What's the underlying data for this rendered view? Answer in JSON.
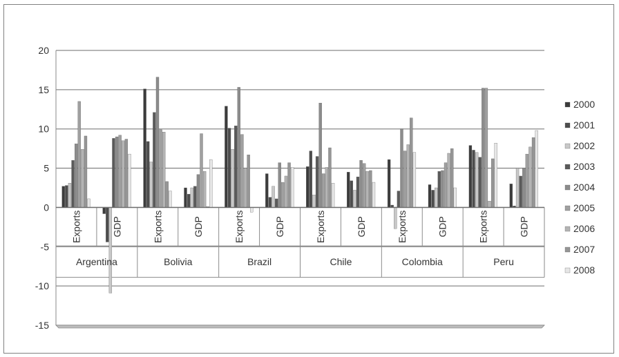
{
  "chart_data": {
    "type": "bar",
    "title": "",
    "xlabel": "",
    "ylabel": "",
    "ylim": [
      -15,
      20
    ],
    "yticks": [
      -15,
      -10,
      -5,
      0,
      5,
      10,
      15,
      20
    ],
    "grid": "horizontal",
    "legend_position": "right",
    "groups": [
      "Argentina",
      "Bolivia",
      "Brazil",
      "Chile",
      "Colombia",
      "Peru"
    ],
    "subcategories": [
      "Exports",
      "GDP"
    ],
    "series_names": [
      "2000",
      "2001",
      "2002",
      "2003",
      "2004",
      "2005",
      "2006",
      "2007",
      "2008"
    ],
    "series_colors": [
      "#3c3c3c",
      "#4d4d4d",
      "#c8c8c8",
      "#5a5a5a",
      "#8c8c8c",
      "#a0a0a0",
      "#b4b4b4",
      "#969696",
      "#e6e6e6"
    ],
    "data": {
      "Argentina": {
        "Exports": [
          2.7,
          2.8,
          3.1,
          6.0,
          8.1,
          13.5,
          7.4,
          9.1,
          1.1
        ],
        "GDP": [
          -0.8,
          -4.4,
          -10.9,
          8.8,
          9.0,
          9.2,
          8.5,
          8.7,
          6.8
        ]
      },
      "Bolivia": {
        "Exports": [
          15.1,
          8.4,
          5.8,
          12.1,
          16.6,
          9.9,
          9.6,
          3.3,
          2.1
        ],
        "GDP": [
          2.5,
          1.7,
          2.5,
          2.7,
          4.2,
          9.4,
          4.6,
          0.1,
          6.1
        ]
      },
      "Brazil": {
        "Exports": [
          12.9,
          10.1,
          7.4,
          10.4,
          15.3,
          9.3,
          5.0,
          6.7,
          -0.6
        ],
        "GDP": [
          4.3,
          1.3,
          2.7,
          1.1,
          5.7,
          3.2,
          4.0,
          5.7,
          5.1
        ]
      },
      "Chile": {
        "Exports": [
          5.2,
          7.2,
          1.6,
          6.5,
          13.3,
          4.3,
          5.1,
          7.6,
          3.1
        ],
        "GDP": [
          4.5,
          3.4,
          2.2,
          3.9,
          6.0,
          5.6,
          4.6,
          4.7,
          3.2
        ]
      },
      "Colombia": {
        "Exports": [
          6.1,
          0.3,
          -2.7,
          2.1,
          10.0,
          7.2,
          8.0,
          11.4,
          7.0
        ],
        "GDP": [
          2.9,
          2.2,
          2.5,
          4.6,
          4.7,
          5.7,
          6.9,
          7.5,
          2.5
        ]
      },
      "Peru": {
        "Exports": [
          7.9,
          7.3,
          7.0,
          6.4,
          15.2,
          15.2,
          0.8,
          6.2,
          8.2
        ],
        "GDP": [
          3.0,
          0.2,
          5.0,
          4.0,
          5.0,
          6.8,
          7.7,
          8.9,
          9.8
        ]
      }
    }
  }
}
